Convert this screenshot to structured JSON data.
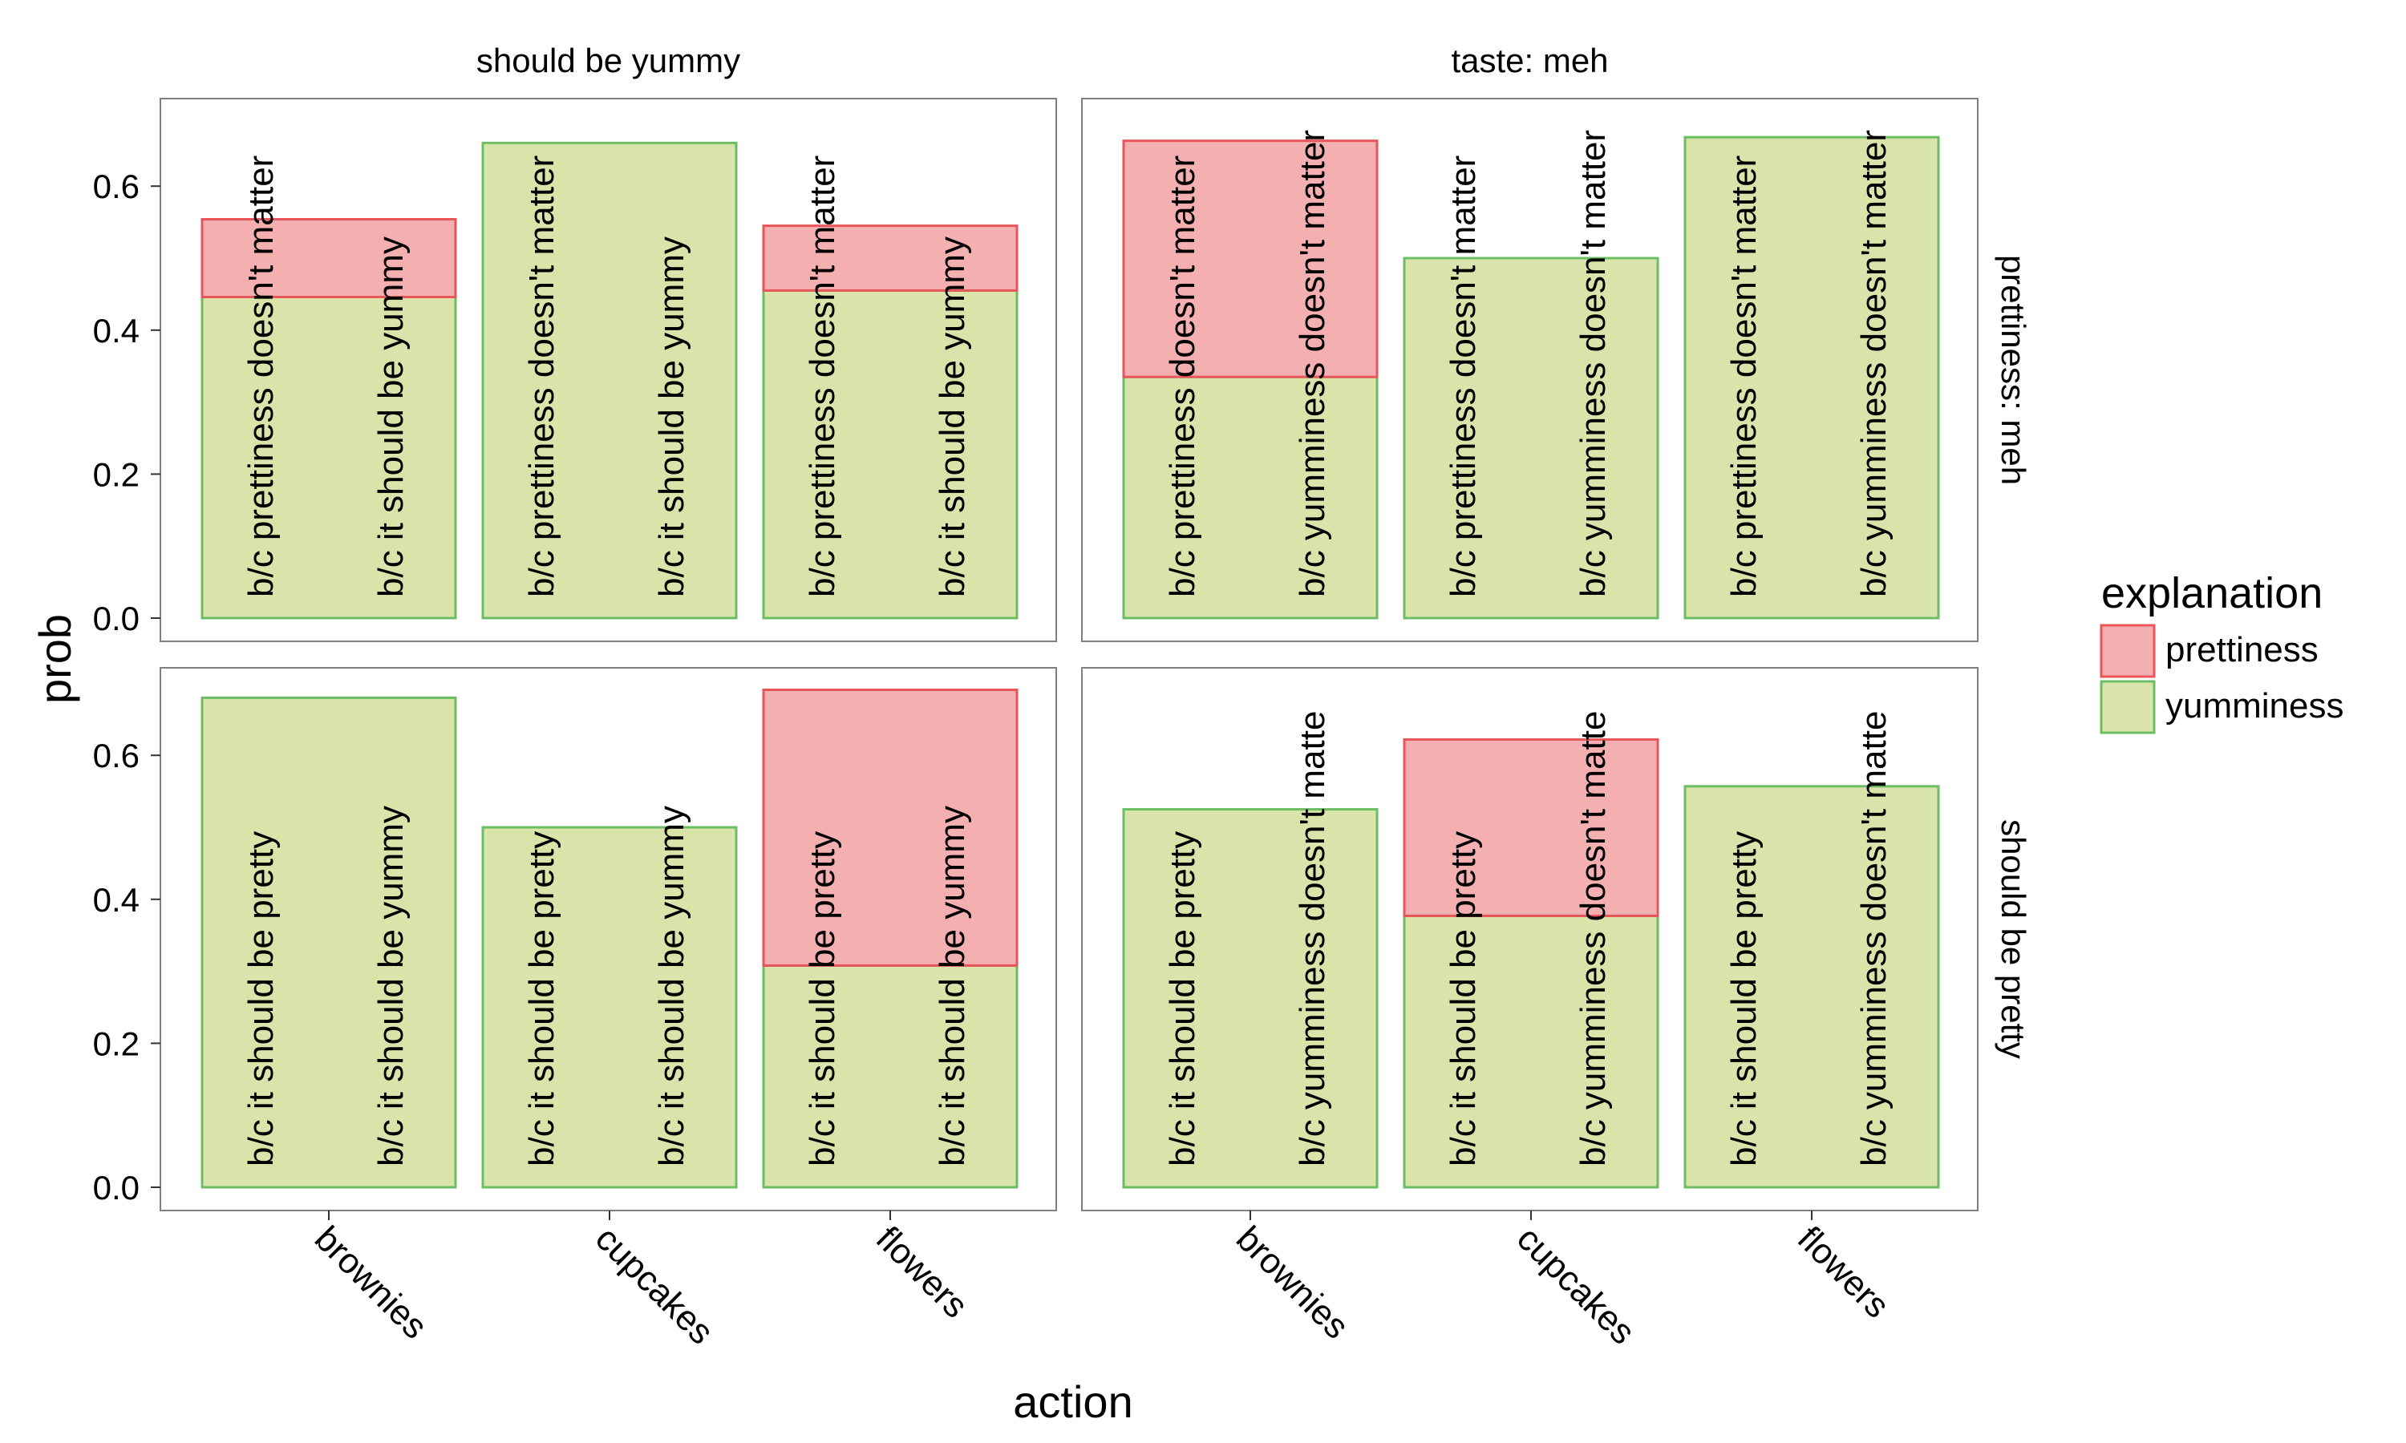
{
  "chart_data": {
    "type": "bar",
    "stacked": true,
    "xlabel": "action",
    "ylabel": "prob",
    "ylim": [
      0,
      0.72
    ],
    "yticks": [
      "0.0",
      "0.2",
      "0.4",
      "0.6"
    ],
    "yticks_values": [
      0,
      0.2,
      0.4,
      0.6
    ],
    "categories": [
      "brownies",
      "cupcakes",
      "flowers"
    ],
    "col_strips": [
      "should be yummy",
      "taste: meh"
    ],
    "row_strips": [
      "prettiness: meh",
      "should be pretty"
    ],
    "legend": {
      "title": "explanation",
      "position": "right",
      "items": [
        {
          "name": "prettiness",
          "fill": "#f4b0b0",
          "stroke": "#e8555b"
        },
        {
          "name": "yumminess",
          "fill": "#d8e4aa",
          "stroke": "#6cbd63"
        }
      ]
    },
    "panels": [
      {
        "row": 0,
        "col": 0,
        "bars": [
          {
            "category": "brownies",
            "yumminess": 0.446,
            "prettiness": 0.108,
            "labels": [
              "b/c prettiness doesn't matter",
              "b/c it should be yummy"
            ]
          },
          {
            "category": "cupcakes",
            "yumminess": 0.66,
            "prettiness": 0.0,
            "labels": [
              "b/c prettiness doesn't matter",
              "b/c it should be yummy"
            ]
          },
          {
            "category": "flowers",
            "yumminess": 0.455,
            "prettiness": 0.09,
            "labels": [
              "b/c prettiness doesn't matter",
              "b/c it should be yummy"
            ]
          }
        ]
      },
      {
        "row": 0,
        "col": 1,
        "bars": [
          {
            "category": "brownies",
            "yumminess": 0.335,
            "prettiness": 0.328,
            "labels": [
              "b/c prettiness doesn't matter",
              "b/c yumminess doesn't matter"
            ]
          },
          {
            "category": "cupcakes",
            "yumminess": 0.5,
            "prettiness": 0.0,
            "labels": [
              "b/c prettiness doesn't matter",
              "b/c yumminess doesn't matter"
            ]
          },
          {
            "category": "flowers",
            "yumminess": 0.668,
            "prettiness": 0.0,
            "labels": [
              "b/c prettiness doesn't matter",
              "b/c yumminess doesn't matter"
            ]
          }
        ]
      },
      {
        "row": 1,
        "col": 0,
        "bars": [
          {
            "category": "brownies",
            "yumminess": 0.68,
            "prettiness": 0.0,
            "labels": [
              "b/c it should be pretty",
              "b/c it should be yummy"
            ]
          },
          {
            "category": "cupcakes",
            "yumminess": 0.5,
            "prettiness": 0.0,
            "labels": [
              "b/c it should be pretty",
              "b/c it should be yummy"
            ]
          },
          {
            "category": "flowers",
            "yumminess": 0.308,
            "prettiness": 0.383,
            "labels": [
              "b/c it should be pretty",
              "b/c it should be yummy"
            ]
          }
        ]
      },
      {
        "row": 1,
        "col": 1,
        "bars": [
          {
            "category": "brownies",
            "yumminess": 0.525,
            "prettiness": 0.0,
            "labels": [
              "b/c it should be pretty",
              "b/c yumminess doesn't matte"
            ]
          },
          {
            "category": "cupcakes",
            "yumminess": 0.377,
            "prettiness": 0.245,
            "labels": [
              "b/c it should be pretty",
              "b/c yumminess doesn't matte"
            ]
          },
          {
            "category": "flowers",
            "yumminess": 0.557,
            "prettiness": 0.0,
            "labels": [
              "b/c it should be pretty",
              "b/c yumminess doesn't matte"
            ]
          }
        ]
      }
    ]
  }
}
